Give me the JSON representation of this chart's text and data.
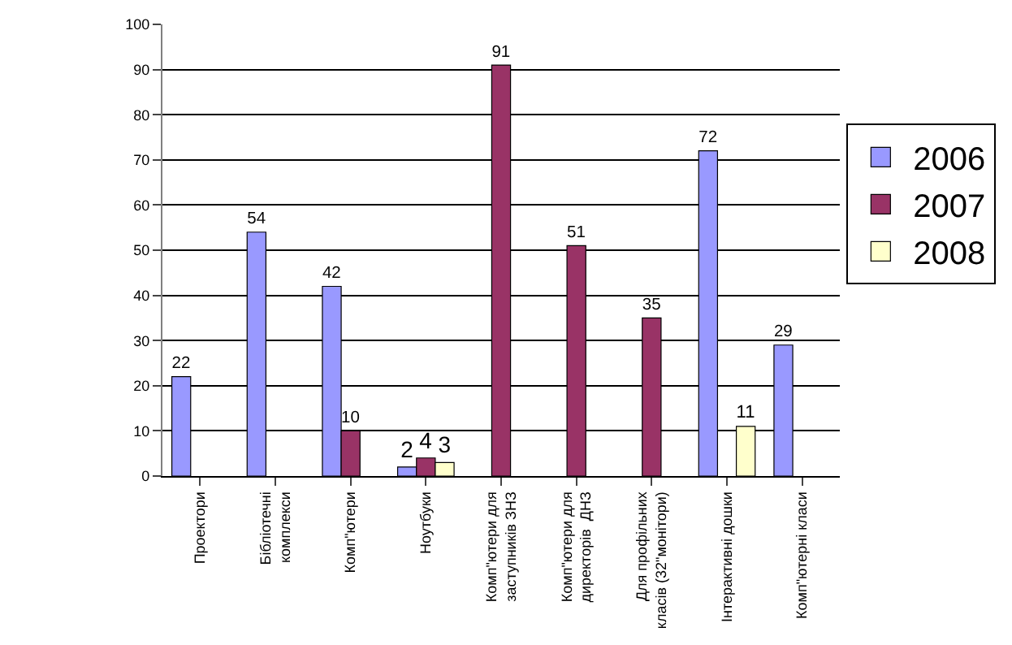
{
  "chart_data": {
    "type": "bar",
    "categories": [
      "Проектори",
      "Бібліотечні комплекси",
      "Комп\"ютери",
      "Ноутбуки",
      "Комп\"ютери для заступників ЗНЗ",
      "Комп\"ютери для директорів  ДНЗ",
      "Для профільних класів (32\"монітори)",
      "Інтерактивні дошки",
      "Комп\"ютерні класи"
    ],
    "series": [
      {
        "name": "2006",
        "color": "#9999ff",
        "values": [
          22,
          54,
          42,
          2,
          null,
          null,
          null,
          72,
          29
        ]
      },
      {
        "name": "2007",
        "color": "#993366",
        "values": [
          null,
          null,
          10,
          4,
          91,
          51,
          35,
          null,
          null
        ]
      },
      {
        "name": "2008",
        "color": "#ffffcc",
        "values": [
          null,
          null,
          null,
          3,
          null,
          null,
          null,
          11,
          null
        ]
      }
    ],
    "ylim": [
      0,
      100
    ],
    "yticks": [
      0,
      10,
      20,
      30,
      40,
      50,
      60,
      70,
      80,
      90,
      100
    ],
    "grid": "y",
    "legend": "right",
    "data_labels": true
  }
}
